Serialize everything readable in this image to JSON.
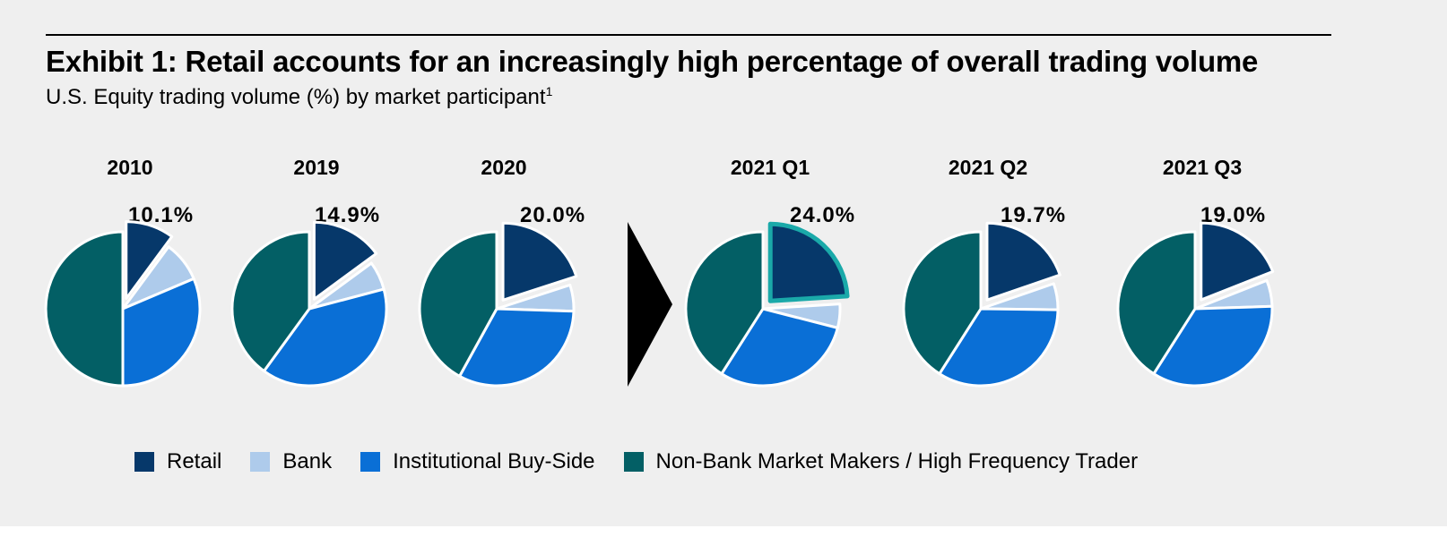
{
  "colors": {
    "retail": "#06386a",
    "bank": "#aecbeb",
    "institutional": "#0a6fd6",
    "hft": "#035f65",
    "highlight": "#1aa9a9",
    "arrow": "#000000"
  },
  "chart_data": {
    "type": "pie",
    "title": "Exhibit 1: Retail accounts for an increasingly high percentage of overall trading volume",
    "subtitle": "U.S. Equity trading volume (%) by market participant",
    "subtitle_footnote": "1",
    "legend_placement": "bottom",
    "series_names": [
      "Retail",
      "Bank",
      "Institutional Buy-Side",
      "Non-Bank Market Makers / High Frequency Trader"
    ],
    "pies": [
      {
        "label": "2010",
        "retail_label": "10.1%",
        "values": [
          10.1,
          8.5,
          31.4,
          50.0
        ],
        "highlight": false
      },
      {
        "label": "2019",
        "retail_label": "14.9%",
        "values": [
          14.9,
          6.0,
          39.1,
          40.0
        ],
        "highlight": false
      },
      {
        "label": "2020",
        "retail_label": "20.0%",
        "values": [
          20.0,
          5.5,
          32.5,
          42.0
        ],
        "highlight": false
      },
      {
        "label": "2021 Q1",
        "retail_label": "24.0%",
        "values": [
          24.0,
          5.0,
          30.0,
          41.0
        ],
        "highlight": true
      },
      {
        "label": "2021 Q2",
        "retail_label": "19.7%",
        "values": [
          19.7,
          5.5,
          33.8,
          41.0
        ],
        "highlight": false
      },
      {
        "label": "2021 Q3",
        "retail_label": "19.0%",
        "values": [
          19.0,
          5.5,
          34.5,
          41.0
        ],
        "highlight": false
      }
    ]
  }
}
